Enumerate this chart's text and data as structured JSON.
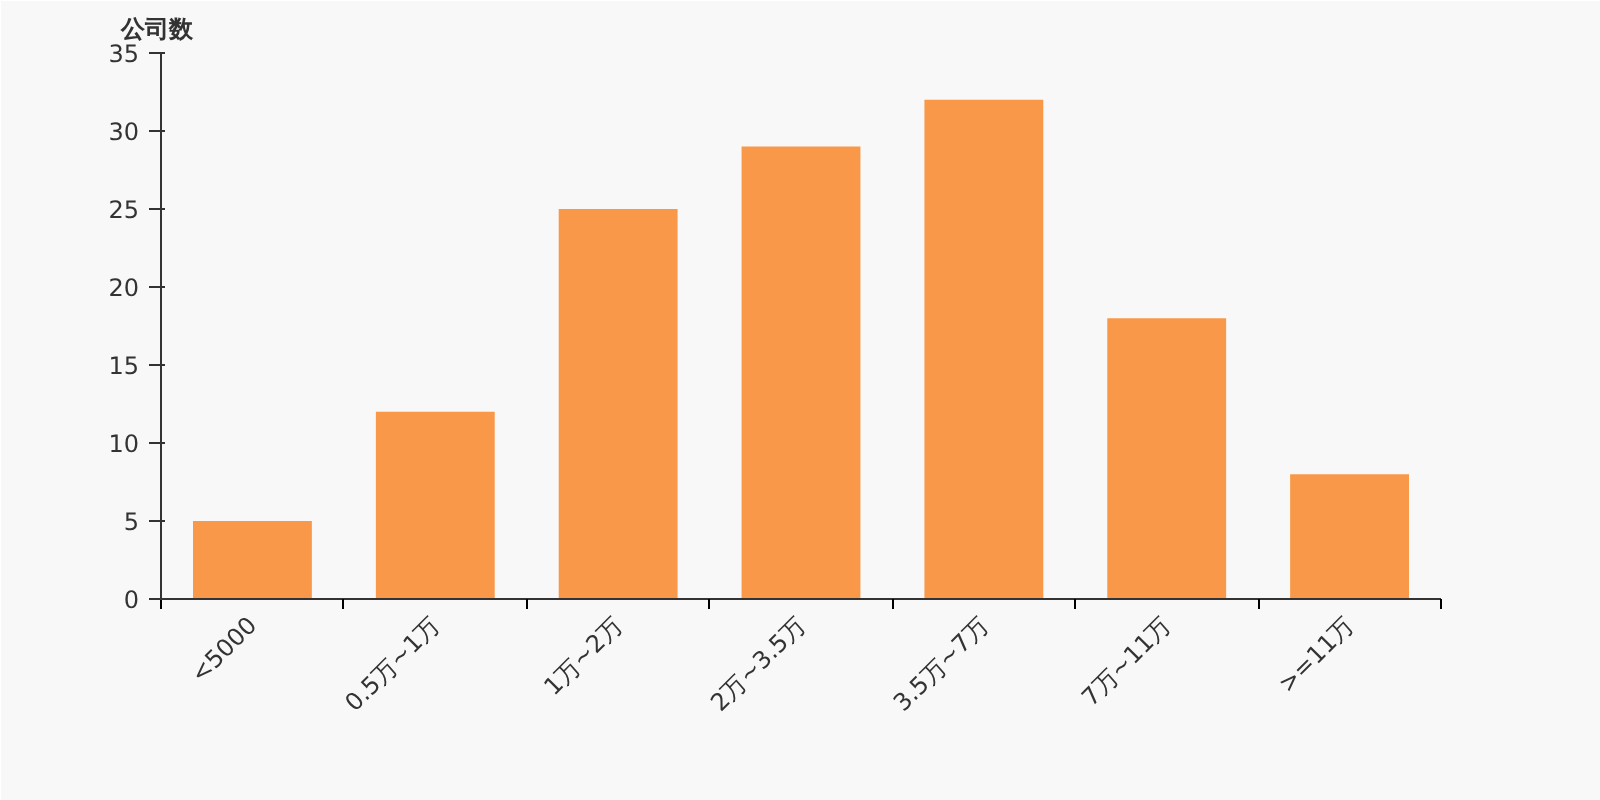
{
  "chart_data": {
    "type": "bar",
    "ylabel": "公司数",
    "categories": [
      "<5000",
      "0.5万~1万",
      "1万~2万",
      "2万~3.5万",
      "3.5万~7万",
      "7万~11万",
      ">=11万"
    ],
    "values": [
      5,
      12,
      25,
      29,
      32,
      18,
      8
    ],
    "color": "#f89848",
    "ylim": [
      0,
      35
    ],
    "yticks": [
      0,
      5,
      10,
      15,
      20,
      25,
      30,
      35
    ],
    "grid": false
  }
}
